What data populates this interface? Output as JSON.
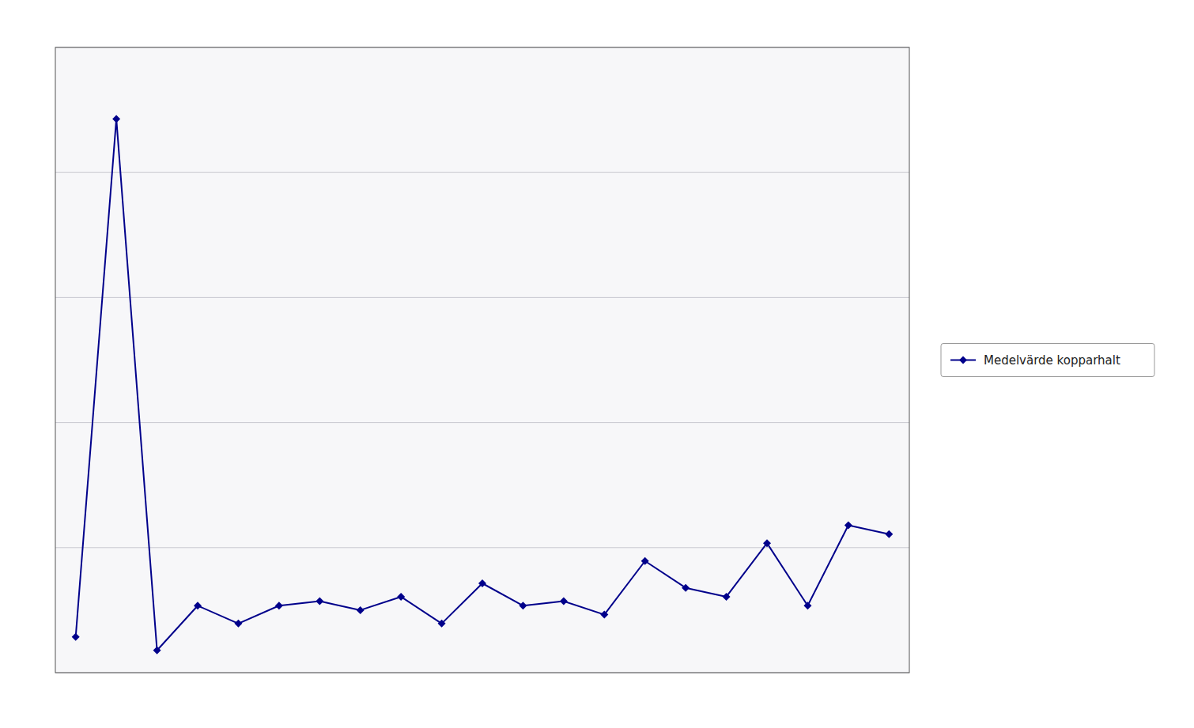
{
  "chart_data": {
    "type": "line",
    "x": [
      0,
      1,
      2,
      3,
      4,
      5,
      6,
      7,
      8,
      9,
      10,
      11,
      12,
      13,
      14,
      15,
      16,
      17,
      18,
      19,
      20
    ],
    "series": [
      {
        "name": "Medelvärde kopparhalt",
        "color": "#00008B",
        "marker": "diamond",
        "values": [
          4.0,
          62.0,
          2.5,
          7.5,
          5.5,
          7.5,
          8.0,
          7.0,
          8.5,
          5.5,
          10.0,
          7.5,
          8.0,
          6.5,
          12.5,
          9.5,
          8.5,
          14.5,
          7.5,
          16.5,
          15.5
        ]
      }
    ],
    "xlim": [
      -0.5,
      20.5
    ],
    "ylim": [
      0,
      70
    ],
    "yticks": [
      0,
      14,
      28,
      42,
      56,
      70
    ],
    "grid": true,
    "legend": "right",
    "tick_labels": false
  }
}
